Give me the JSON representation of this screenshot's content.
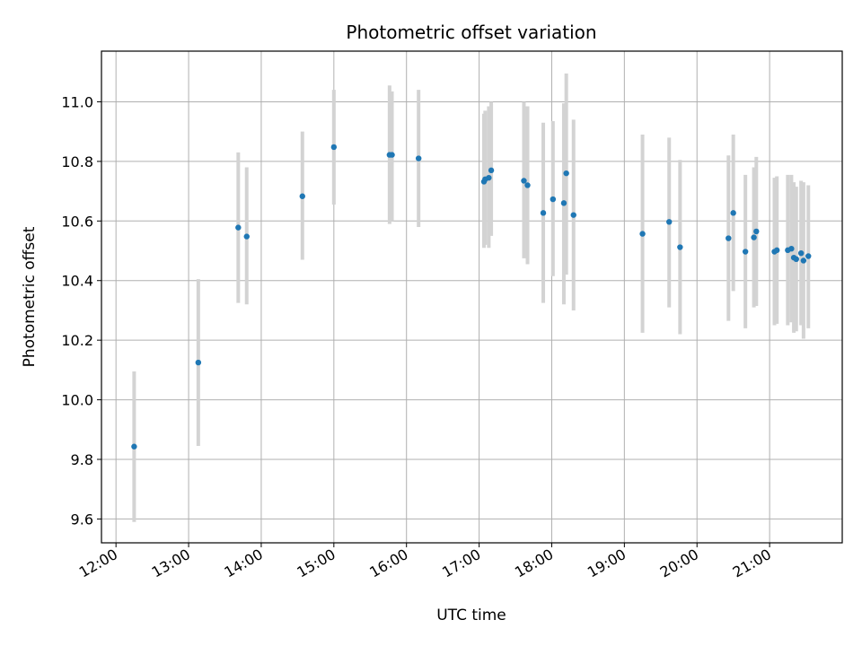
{
  "chart_data": {
    "type": "scatter",
    "title": "Photometric offset variation",
    "xlabel": "UTC time",
    "ylabel": "Photometric offset",
    "x_tick_labels": [
      "12:00",
      "13:00",
      "14:00",
      "15:00",
      "16:00",
      "17:00",
      "18:00",
      "19:00",
      "20:00",
      "21:00"
    ],
    "y_tick_labels": [
      "9.6",
      "9.8",
      "10.0",
      "10.2",
      "10.4",
      "10.6",
      "10.8",
      "11.0"
    ],
    "y_ticks": [
      9.6,
      9.8,
      10.0,
      10.2,
      10.4,
      10.6,
      10.8,
      11.0
    ],
    "xlim": [
      "11:48",
      "22:00"
    ],
    "ylim": [
      9.52,
      11.17
    ],
    "grid": true,
    "colors": {
      "point": "#1f77b4",
      "errorbar": "#d3d3d3",
      "grid": "#b0b0b0",
      "axis": "#000000"
    },
    "points": [
      {
        "x": "12:15",
        "y": 9.843,
        "lo": 9.59,
        "hi": 10.095
      },
      {
        "x": "13:08",
        "y": 10.125,
        "lo": 9.845,
        "hi": 10.405
      },
      {
        "x": "13:41",
        "y": 10.578,
        "lo": 10.325,
        "hi": 10.83
      },
      {
        "x": "13:48",
        "y": 10.548,
        "lo": 10.32,
        "hi": 10.78
      },
      {
        "x": "14:34",
        "y": 10.683,
        "lo": 10.47,
        "hi": 10.9
      },
      {
        "x": "15:00",
        "y": 10.848,
        "lo": 10.655,
        "hi": 11.04
      },
      {
        "x": "15:46",
        "y": 10.822,
        "lo": 10.59,
        "hi": 11.055
      },
      {
        "x": "15:48",
        "y": 10.822,
        "lo": 10.6,
        "hi": 11.035
      },
      {
        "x": "16:10",
        "y": 10.81,
        "lo": 10.58,
        "hi": 11.04
      },
      {
        "x": "17:04",
        "y": 10.732,
        "lo": 10.51,
        "hi": 10.96
      },
      {
        "x": "17:05",
        "y": 10.74,
        "lo": 10.52,
        "hi": 10.97
      },
      {
        "x": "17:08",
        "y": 10.745,
        "lo": 10.51,
        "hi": 10.985
      },
      {
        "x": "17:10",
        "y": 10.77,
        "lo": 10.55,
        "hi": 11.0
      },
      {
        "x": "17:37",
        "y": 10.735,
        "lo": 10.475,
        "hi": 11.0
      },
      {
        "x": "17:40",
        "y": 10.72,
        "lo": 10.455,
        "hi": 10.985
      },
      {
        "x": "17:53",
        "y": 10.627,
        "lo": 10.325,
        "hi": 10.93
      },
      {
        "x": "18:01",
        "y": 10.673,
        "lo": 10.415,
        "hi": 10.935
      },
      {
        "x": "18:10",
        "y": 10.66,
        "lo": 10.32,
        "hi": 10.995
      },
      {
        "x": "18:12",
        "y": 10.76,
        "lo": 10.42,
        "hi": 11.095
      },
      {
        "x": "18:18",
        "y": 10.62,
        "lo": 10.3,
        "hi": 10.94
      },
      {
        "x": "19:15",
        "y": 10.557,
        "lo": 10.225,
        "hi": 10.89
      },
      {
        "x": "19:37",
        "y": 10.597,
        "lo": 10.31,
        "hi": 10.88
      },
      {
        "x": "19:46",
        "y": 10.512,
        "lo": 10.22,
        "hi": 10.805
      },
      {
        "x": "20:26",
        "y": 10.542,
        "lo": 10.265,
        "hi": 10.82
      },
      {
        "x": "20:30",
        "y": 10.627,
        "lo": 10.365,
        "hi": 10.89
      },
      {
        "x": "20:40",
        "y": 10.497,
        "lo": 10.24,
        "hi": 10.755
      },
      {
        "x": "20:47",
        "y": 10.545,
        "lo": 10.31,
        "hi": 10.78
      },
      {
        "x": "20:49",
        "y": 10.565,
        "lo": 10.315,
        "hi": 10.815
      },
      {
        "x": "21:04",
        "y": 10.497,
        "lo": 10.25,
        "hi": 10.745
      },
      {
        "x": "21:06",
        "y": 10.502,
        "lo": 10.255,
        "hi": 10.75
      },
      {
        "x": "21:15",
        "y": 10.502,
        "lo": 10.25,
        "hi": 10.755
      },
      {
        "x": "21:18",
        "y": 10.507,
        "lo": 10.26,
        "hi": 10.755
      },
      {
        "x": "21:20",
        "y": 10.477,
        "lo": 10.225,
        "hi": 10.73
      },
      {
        "x": "21:22",
        "y": 10.472,
        "lo": 10.23,
        "hi": 10.715
      },
      {
        "x": "21:26",
        "y": 10.492,
        "lo": 10.25,
        "hi": 10.735
      },
      {
        "x": "21:28",
        "y": 10.467,
        "lo": 10.205,
        "hi": 10.73
      },
      {
        "x": "21:32",
        "y": 10.482,
        "lo": 10.24,
        "hi": 10.72
      }
    ]
  }
}
